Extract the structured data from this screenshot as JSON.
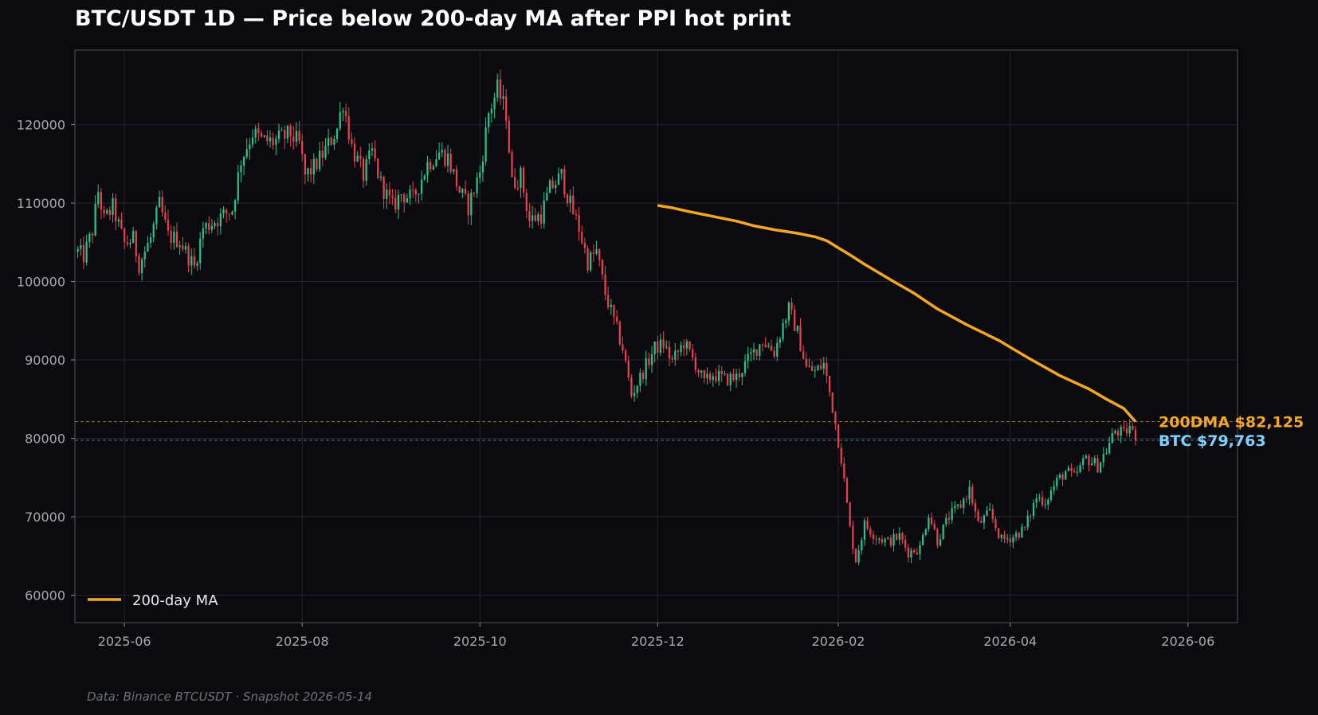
{
  "chart_data": {
    "type": "candlestick",
    "title": "BTC/USDT 1D — Price below 200-day MA after PPI hot print",
    "source_note": "Data: Binance BTCUSDT · Snapshot 2026-05-14",
    "xlabel": "",
    "ylabel": "",
    "x_range": [
      "2025-05-15",
      "2026-06-18"
    ],
    "ylim": [
      56500,
      129500
    ],
    "y_ticks": [
      60000,
      70000,
      80000,
      90000,
      100000,
      110000,
      120000
    ],
    "x_ticks": [
      "2025-06",
      "2025-08",
      "2025-10",
      "2025-12",
      "2026-02",
      "2026-04",
      "2026-06"
    ],
    "grid": true,
    "legend": {
      "position": "lower-left",
      "entries": [
        {
          "label": "200-day MA",
          "color": "#f5a623"
        }
      ]
    },
    "colors": {
      "up": "#26c28c",
      "down": "#e8404f",
      "ma": "#f5a623",
      "btc_label": "#7fd0ff",
      "ma_label": "#f5a623"
    },
    "ma_label": "200DMA $82,125",
    "ma_level": 82125,
    "btc_label": "BTC $79,763",
    "btc_level": 79763,
    "candles": {
      "start_date": "2025-05-16",
      "close_anchors": [
        [
          "2025-05-16",
          103800
        ],
        [
          "2025-05-18",
          103200
        ],
        [
          "2025-05-21",
          106500
        ],
        [
          "2025-05-23",
          111500
        ],
        [
          "2025-05-25",
          107800
        ],
        [
          "2025-05-28",
          109500
        ],
        [
          "2025-06-01",
          104800
        ],
        [
          "2025-06-04",
          105400
        ],
        [
          "2025-06-06",
          102200
        ],
        [
          "2025-06-10",
          105500
        ],
        [
          "2025-06-13",
          109800
        ],
        [
          "2025-06-16",
          105800
        ],
        [
          "2025-06-20",
          105200
        ],
        [
          "2025-06-25",
          101800
        ],
        [
          "2025-06-28",
          106800
        ],
        [
          "2025-07-04",
          108200
        ],
        [
          "2025-07-08",
          109200
        ],
        [
          "2025-07-11",
          115500
        ],
        [
          "2025-07-15",
          119000
        ],
        [
          "2025-07-18",
          118000
        ],
        [
          "2025-07-22",
          117800
        ],
        [
          "2025-07-28",
          118800
        ],
        [
          "2025-07-31",
          117500
        ],
        [
          "2025-08-02",
          113500
        ],
        [
          "2025-08-05",
          114500
        ],
        [
          "2025-08-09",
          116800
        ],
        [
          "2025-08-13",
          119500
        ],
        [
          "2025-08-15",
          123000
        ],
        [
          "2025-08-18",
          117200
        ],
        [
          "2025-08-22",
          113500
        ],
        [
          "2025-08-25",
          116500
        ],
        [
          "2025-08-28",
          112500
        ],
        [
          "2025-09-01",
          109500
        ],
        [
          "2025-09-04",
          111200
        ],
        [
          "2025-09-08",
          110500
        ],
        [
          "2025-09-13",
          115000
        ],
        [
          "2025-09-17",
          116500
        ],
        [
          "2025-09-20",
          115800
        ],
        [
          "2025-09-24",
          111500
        ],
        [
          "2025-09-27",
          109500
        ],
        [
          "2025-10-01",
          114000
        ],
        [
          "2025-10-04",
          121500
        ],
        [
          "2025-10-07",
          124500
        ],
        [
          "2025-10-10",
          121500
        ],
        [
          "2025-10-12",
          112500
        ],
        [
          "2025-10-15",
          113500
        ],
        [
          "2025-10-18",
          107800
        ],
        [
          "2025-10-22",
          108500
        ],
        [
          "2025-10-25",
          111800
        ],
        [
          "2025-10-29",
          113500
        ],
        [
          "2025-11-01",
          109800
        ],
        [
          "2025-11-04",
          106800
        ],
        [
          "2025-11-07",
          102500
        ],
        [
          "2025-11-10",
          103800
        ],
        [
          "2025-11-13",
          98500
        ],
        [
          "2025-11-16",
          95000
        ],
        [
          "2025-11-19",
          91500
        ],
        [
          "2025-11-22",
          85500
        ],
        [
          "2025-11-26",
          88500
        ],
        [
          "2025-11-30",
          91500
        ],
        [
          "2025-12-03",
          92000
        ],
        [
          "2025-12-06",
          89800
        ],
        [
          "2025-12-10",
          92200
        ],
        [
          "2025-12-14",
          89500
        ],
        [
          "2025-12-17",
          87000
        ],
        [
          "2025-12-20",
          88200
        ],
        [
          "2025-12-24",
          87500
        ],
        [
          "2025-12-28",
          87800
        ],
        [
          "2026-01-02",
          90500
        ],
        [
          "2026-01-06",
          92500
        ],
        [
          "2026-01-10",
          91000
        ],
        [
          "2026-01-13",
          94500
        ],
        [
          "2026-01-15",
          96500
        ],
        [
          "2026-01-18",
          93500
        ],
        [
          "2026-01-21",
          89000
        ],
        [
          "2026-01-24",
          88500
        ],
        [
          "2026-01-27",
          89500
        ],
        [
          "2026-01-30",
          84000
        ],
        [
          "2026-02-02",
          77500
        ],
        [
          "2026-02-05",
          68500
        ],
        [
          "2026-02-07",
          64500
        ],
        [
          "2026-02-10",
          69000
        ],
        [
          "2026-02-14",
          67500
        ],
        [
          "2026-02-18",
          66800
        ],
        [
          "2026-02-22",
          67500
        ],
        [
          "2026-02-25",
          65500
        ],
        [
          "2026-03-01",
          66000
        ],
        [
          "2026-03-04",
          70500
        ],
        [
          "2026-03-07",
          67000
        ],
        [
          "2026-03-11",
          70000
        ],
        [
          "2026-03-15",
          71500
        ],
        [
          "2026-03-18",
          73500
        ],
        [
          "2026-03-21",
          69000
        ],
        [
          "2026-03-25",
          70500
        ],
        [
          "2026-03-29",
          67000
        ],
        [
          "2026-04-02",
          67500
        ],
        [
          "2026-04-06",
          68500
        ],
        [
          "2026-04-10",
          72500
        ],
        [
          "2026-04-13",
          72000
        ],
        [
          "2026-04-17",
          74500
        ],
        [
          "2026-04-20",
          75800
        ],
        [
          "2026-04-23",
          75000
        ],
        [
          "2026-04-27",
          77500
        ],
        [
          "2026-05-01",
          76500
        ],
        [
          "2026-05-04",
          78500
        ],
        [
          "2026-05-07",
          81000
        ],
        [
          "2026-05-10",
          80500
        ],
        [
          "2026-05-12",
          81500
        ],
        [
          "2026-05-14",
          79763
        ]
      ]
    },
    "ma_series": {
      "points": [
        [
          "2025-12-01",
          109700
        ],
        [
          "2025-12-06",
          109400
        ],
        [
          "2025-12-12",
          108900
        ],
        [
          "2025-12-20",
          108300
        ],
        [
          "2025-12-28",
          107700
        ],
        [
          "2026-01-03",
          107100
        ],
        [
          "2026-01-10",
          106600
        ],
        [
          "2026-01-18",
          106150
        ],
        [
          "2026-01-24",
          105700
        ],
        [
          "2026-01-28",
          105200
        ],
        [
          "2026-02-01",
          104300
        ],
        [
          "2026-02-05",
          103400
        ],
        [
          "2026-02-10",
          102200
        ],
        [
          "2026-02-20",
          100000
        ],
        [
          "2026-02-27",
          98500
        ],
        [
          "2026-03-07",
          96500
        ],
        [
          "2026-03-17",
          94500
        ],
        [
          "2026-03-28",
          92500
        ],
        [
          "2026-04-07",
          90300
        ],
        [
          "2026-04-18",
          88000
        ],
        [
          "2026-04-28",
          86300
        ],
        [
          "2026-05-04",
          85000
        ],
        [
          "2026-05-10",
          83800
        ],
        [
          "2026-05-14",
          82125
        ]
      ]
    }
  }
}
